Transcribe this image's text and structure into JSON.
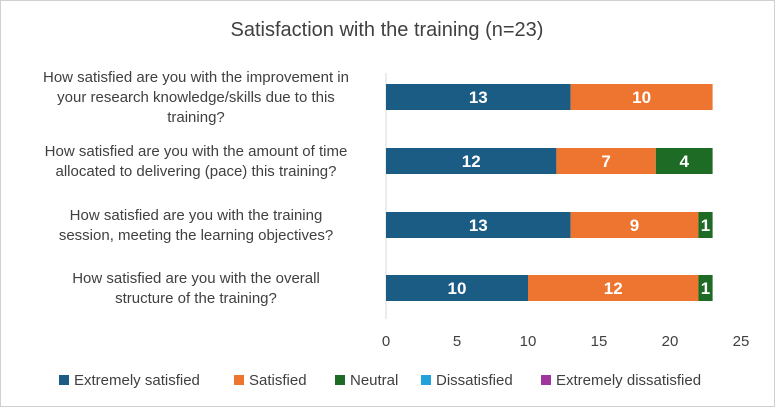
{
  "chart_data": {
    "type": "bar",
    "orientation": "horizontal",
    "stacked": true,
    "title": "Satisfaction with the training (n=23)",
    "categories": [
      [
        "How satisfied are you with the improvement in",
        "your research knowledge/skills due to this",
        "training?"
      ],
      [
        "How satisfied are you with the amount of time",
        "allocated to delivering (pace) this training?"
      ],
      [
        "How satisfied are you with the training",
        "session, meeting the learning objectives?"
      ],
      [
        "How satisfied are you with the overall",
        "structure of the training?"
      ]
    ],
    "series": [
      {
        "name": "Extremely satisfied",
        "color": "#1b5c84",
        "values": [
          13,
          12,
          13,
          10
        ]
      },
      {
        "name": "Satisfied",
        "color": "#ee7530",
        "values": [
          10,
          7,
          9,
          12
        ]
      },
      {
        "name": "Neutral",
        "color": "#1e6b25",
        "values": [
          0,
          4,
          1,
          1
        ]
      },
      {
        "name": "Dissatisfied",
        "color": "#22a2d8",
        "values": [
          0,
          0,
          0,
          0
        ]
      },
      {
        "name": "Extremely dissatisfied",
        "color": "#a0359e",
        "values": [
          0,
          0,
          0,
          0
        ]
      }
    ],
    "xlim": [
      0,
      25
    ],
    "xticks": [
      0,
      5,
      10,
      15,
      20,
      25
    ],
    "xlabel": "",
    "ylabel": "",
    "grid": false,
    "legend": "bottom"
  }
}
